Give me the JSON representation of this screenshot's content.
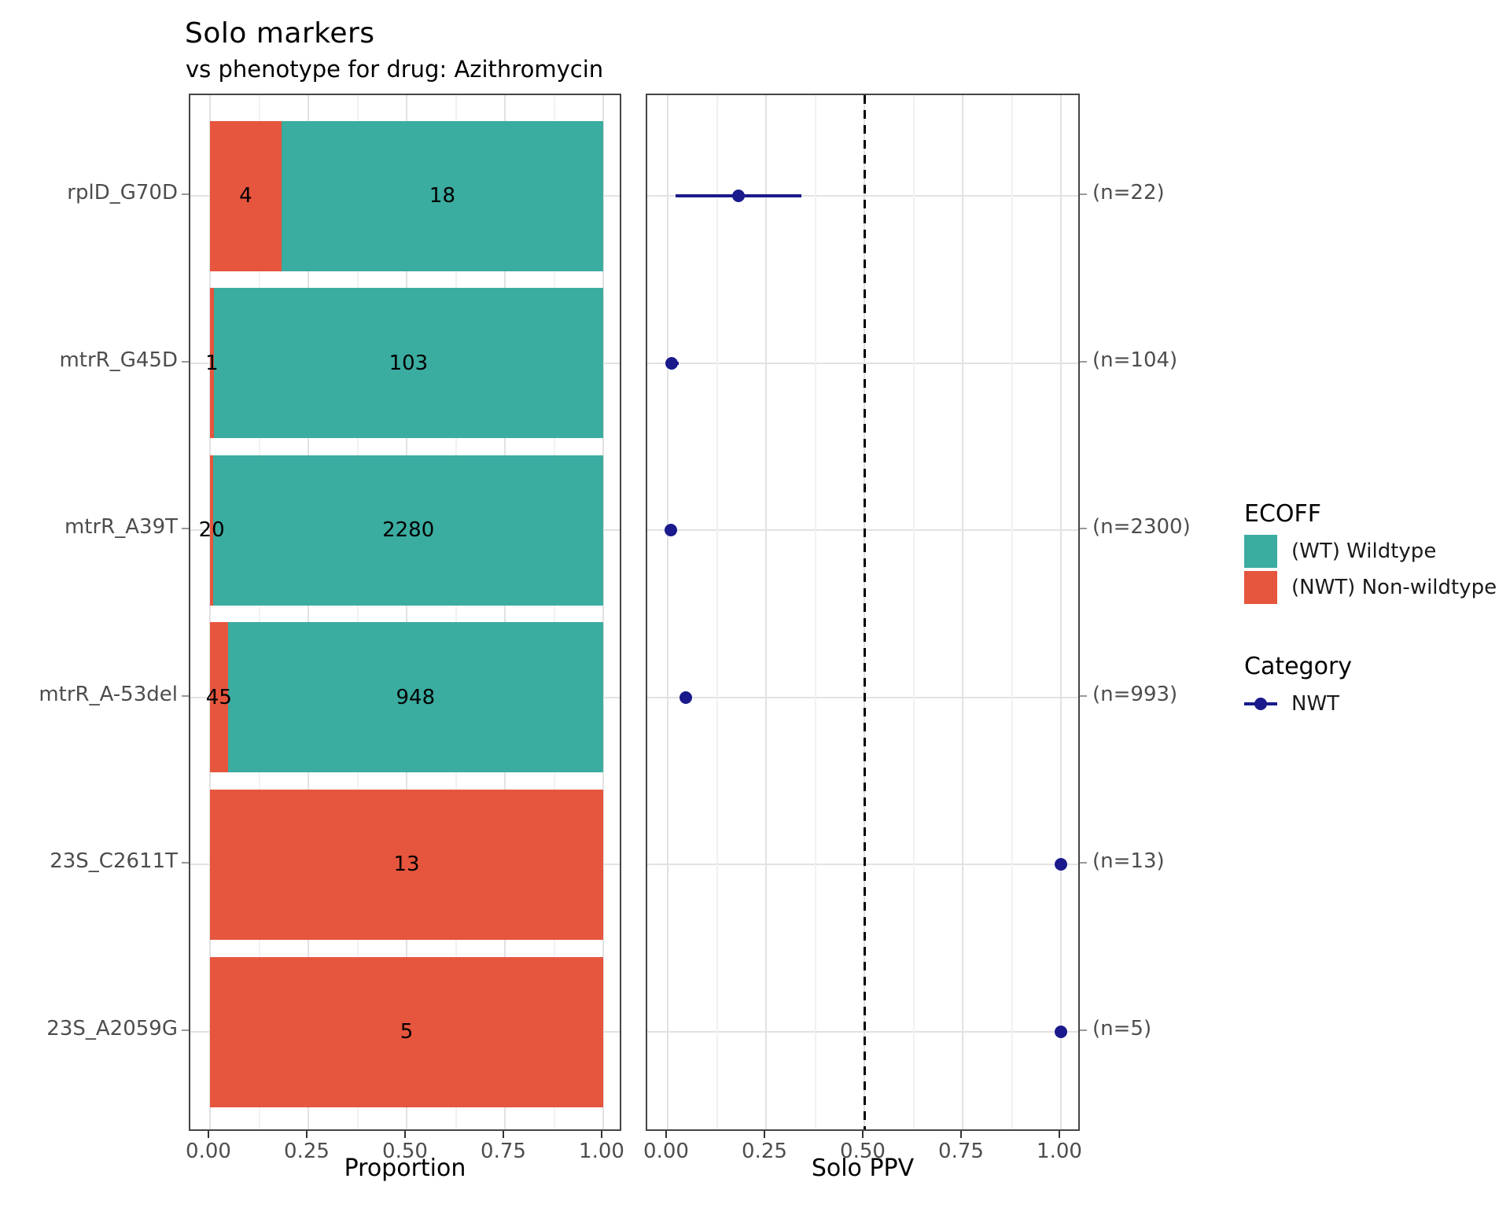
{
  "title": "Solo markers",
  "subtitle": "vs phenotype for drug: Azithromycin",
  "axes": {
    "bar_xlabel": "Proportion",
    "ppv_xlabel": "Solo PPV",
    "xtick_labels": [
      "0.00",
      "0.25",
      "0.50",
      "0.75",
      "1.00"
    ],
    "xtick_values": [
      0,
      0.25,
      0.5,
      0.75,
      1
    ]
  },
  "chart_data": {
    "type": "bar",
    "subtype": "stacked-horizontal-proportion + point-interval (PPV) linked panels",
    "categories": [
      "rplD_G70D",
      "mtrR_G45D",
      "mtrR_A39T",
      "mtrR_A-53del",
      "23S_C2611T",
      "23S_A2059G"
    ],
    "rows": [
      {
        "marker": "rplD_G70D",
        "nwt": 4,
        "wt": 18,
        "nwt_label": "4",
        "wt_label": "18",
        "n": 22,
        "n_label": "(n=22)",
        "ppv": 0.18,
        "ppv_ci": [
          0.02,
          0.34
        ]
      },
      {
        "marker": "mtrR_G45D",
        "nwt": 1,
        "wt": 103,
        "nwt_label": "1",
        "wt_label": "103",
        "n": 104,
        "n_label": "(n=104)",
        "ppv": 0.0096,
        "ppv_ci": [
          0.0,
          0.028
        ]
      },
      {
        "marker": "mtrR_A39T",
        "nwt": 20,
        "wt": 2280,
        "nwt_label": "20",
        "wt_label": "2280",
        "n": 2300,
        "n_label": "(n=2300)",
        "ppv": 0.0087,
        "ppv_ci": [
          0.005,
          0.013
        ]
      },
      {
        "marker": "mtrR_A-53del",
        "nwt": 45,
        "wt": 948,
        "nwt_label": "45",
        "wt_label": "948",
        "n": 993,
        "n_label": "(n=993)",
        "ppv": 0.045,
        "ppv_ci": [
          0.032,
          0.058
        ]
      },
      {
        "marker": "23S_C2611T",
        "nwt": 13,
        "wt": 0,
        "nwt_label": "13",
        "wt_label": "",
        "n": 13,
        "n_label": "(n=13)",
        "ppv": 1.0,
        "ppv_ci": [
          1.0,
          1.0
        ]
      },
      {
        "marker": "23S_A2059G",
        "nwt": 5,
        "wt": 0,
        "nwt_label": "5",
        "wt_label": "",
        "n": 5,
        "n_label": "(n=5)",
        "ppv": 1.0,
        "ppv_ci": [
          1.0,
          1.0
        ]
      }
    ],
    "reference_line": {
      "x": 0.5,
      "style": "dashed",
      "color": "#000000"
    },
    "xlim": [
      0,
      1
    ],
    "grid": "major and minor vertical at eighths, horizontal at each category",
    "legend_position": "right"
  },
  "legend": {
    "ecoff_title": "ECOFF",
    "items": [
      {
        "label": "(WT) Wildtype",
        "color": "#3BACA0"
      },
      {
        "label": "(NWT) Non-wildtype",
        "color": "#E6553D"
      }
    ],
    "category_title": "Category",
    "category_items": [
      {
        "label": "NWT",
        "color": "#1A1A8C"
      }
    ]
  },
  "colors": {
    "wt": "#3BACA0",
    "nwt": "#E6553D",
    "point": "#1A1A8C",
    "grid_major": "#e2e2e2",
    "grid_minor": "#f1f1f1",
    "panel_border": "#454545",
    "tick": "#333333",
    "tick_text": "#4d4d4d",
    "reference": "#000000"
  }
}
